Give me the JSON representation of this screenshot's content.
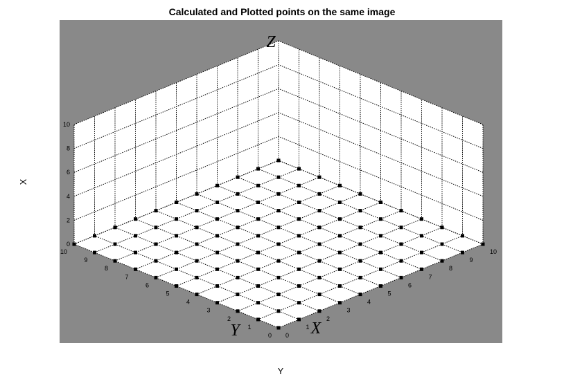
{
  "chart_data": {
    "type": "scatter",
    "title": "Calculated and Plotted points on the same image",
    "xlabel": "Y",
    "ylabel": "X",
    "zlabel": "",
    "x_range": [
      0,
      10
    ],
    "y_range": [
      0,
      10
    ],
    "z_range": [
      0,
      10
    ],
    "x_ticks": [
      "0",
      "1",
      "2",
      "3",
      "4",
      "5",
      "6",
      "7",
      "8",
      "9",
      "10"
    ],
    "y_ticks": [
      "0",
      "1",
      "2",
      "3",
      "4",
      "5",
      "6",
      "7",
      "8",
      "9",
      "10"
    ],
    "z_ticks": [
      "0",
      "2",
      "4",
      "6",
      "8",
      "10"
    ],
    "grid": true,
    "points": {
      "x_values": [
        0,
        1,
        2,
        3,
        4,
        5,
        6,
        7,
        8,
        9,
        10
      ],
      "y_values": [
        0,
        1,
        2,
        3,
        4,
        5,
        6,
        7,
        8,
        9,
        10
      ],
      "z": 0,
      "marker": "square"
    },
    "annotations": {
      "x": "X",
      "y": "Y",
      "z": "Z"
    },
    "colors": {
      "frame": "#898989",
      "pane": "#ffffff",
      "grid": "#000000",
      "marker": "#000000"
    }
  }
}
